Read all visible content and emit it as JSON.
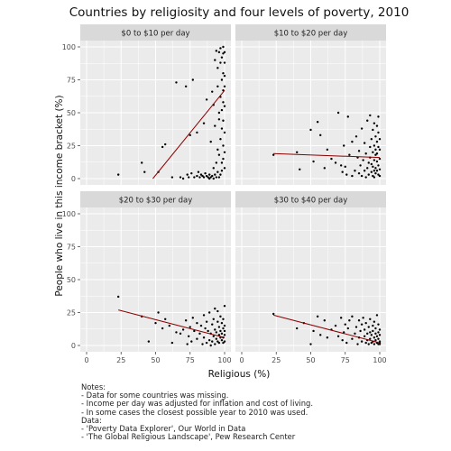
{
  "chart_data": {
    "type": "scatter",
    "title": "Countries by religiosity and four levels of poverty, 2010",
    "xlabel": "Religious (%)",
    "ylabel": "People who live in this income bracket (%)",
    "xlim": [
      0,
      100
    ],
    "ylim": [
      0,
      100
    ],
    "x_ticks": [
      "0",
      "25",
      "50",
      "75",
      "100"
    ],
    "y_ticks": [
      "0",
      "25",
      "50",
      "75",
      "100"
    ],
    "grid": true,
    "colors": {
      "panel_bg": "#ebebeb",
      "strip_bg": "#d9d9d9",
      "grid": "#ffffff",
      "point": "#000000",
      "trend": "#8b0000"
    },
    "panels": [
      {
        "label": "$0 to $10 per day",
        "trend": [
          [
            48,
            0
          ],
          [
            100,
            67
          ]
        ],
        "points": [
          [
            23,
            3
          ],
          [
            40,
            12
          ],
          [
            42,
            5
          ],
          [
            52,
            5
          ],
          [
            55,
            24
          ],
          [
            57,
            26
          ],
          [
            62,
            1
          ],
          [
            65,
            73
          ],
          [
            68,
            1
          ],
          [
            70,
            0
          ],
          [
            72,
            70
          ],
          [
            73,
            3
          ],
          [
            74,
            1
          ],
          [
            75,
            33
          ],
          [
            76,
            4
          ],
          [
            77,
            75
          ],
          [
            78,
            1
          ],
          [
            80,
            2
          ],
          [
            80,
            35
          ],
          [
            81,
            5
          ],
          [
            82,
            1
          ],
          [
            83,
            3
          ],
          [
            84,
            2
          ],
          [
            85,
            42
          ],
          [
            85,
            1
          ],
          [
            86,
            4
          ],
          [
            87,
            60
          ],
          [
            87,
            2
          ],
          [
            88,
            1
          ],
          [
            89,
            0
          ],
          [
            89,
            3
          ],
          [
            90,
            28
          ],
          [
            90,
            1
          ],
          [
            91,
            66
          ],
          [
            91,
            2
          ],
          [
            92,
            8
          ],
          [
            92,
            56
          ],
          [
            92,
            0
          ],
          [
            93,
            90
          ],
          [
            93,
            3
          ],
          [
            93,
            40
          ],
          [
            94,
            1
          ],
          [
            94,
            12
          ],
          [
            94,
            97
          ],
          [
            95,
            70
          ],
          [
            95,
            22
          ],
          [
            95,
            5
          ],
          [
            95,
            84
          ],
          [
            96,
            50
          ],
          [
            96,
            96
          ],
          [
            96,
            1
          ],
          [
            96,
            45
          ],
          [
            96,
            18
          ],
          [
            97,
            88
          ],
          [
            97,
            62
          ],
          [
            97,
            3
          ],
          [
            97,
            30
          ],
          [
            97,
            99
          ],
          [
            98,
            75
          ],
          [
            98,
            52
          ],
          [
            98,
            12
          ],
          [
            98,
            92
          ],
          [
            98,
            38
          ],
          [
            98,
            6
          ],
          [
            99,
            80
          ],
          [
            99,
            58
          ],
          [
            99,
            95
          ],
          [
            99,
            100
          ],
          [
            99,
            25
          ],
          [
            99,
            67
          ],
          [
            99,
            15
          ],
          [
            99,
            44
          ],
          [
            100,
            70
          ],
          [
            100,
            88
          ],
          [
            100,
            35
          ],
          [
            100,
            96
          ],
          [
            100,
            8
          ],
          [
            100,
            55
          ],
          [
            100,
            20
          ],
          [
            100,
            78
          ]
        ]
      },
      {
        "label": "$10 to $20 per day",
        "trend": [
          [
            23,
            19
          ],
          [
            100,
            16
          ]
        ],
        "points": [
          [
            23,
            18
          ],
          [
            40,
            20
          ],
          [
            42,
            7
          ],
          [
            50,
            37
          ],
          [
            52,
            13
          ],
          [
            55,
            43
          ],
          [
            57,
            33
          ],
          [
            60,
            8
          ],
          [
            62,
            22
          ],
          [
            65,
            15
          ],
          [
            68,
            12
          ],
          [
            70,
            50
          ],
          [
            72,
            10
          ],
          [
            73,
            5
          ],
          [
            74,
            25
          ],
          [
            75,
            9
          ],
          [
            76,
            3
          ],
          [
            77,
            47
          ],
          [
            78,
            18
          ],
          [
            80,
            2
          ],
          [
            80,
            28
          ],
          [
            82,
            6
          ],
          [
            83,
            32
          ],
          [
            84,
            16
          ],
          [
            85,
            4
          ],
          [
            85,
            21
          ],
          [
            86,
            10
          ],
          [
            87,
            38
          ],
          [
            87,
            2
          ],
          [
            88,
            14
          ],
          [
            89,
            6
          ],
          [
            89,
            27
          ],
          [
            90,
            19
          ],
          [
            90,
            1
          ],
          [
            91,
            44
          ],
          [
            91,
            8
          ],
          [
            92,
            12
          ],
          [
            92,
            3
          ],
          [
            93,
            24
          ],
          [
            93,
            16
          ],
          [
            93,
            48
          ],
          [
            94,
            5
          ],
          [
            94,
            30
          ],
          [
            94,
            11
          ],
          [
            95,
            20
          ],
          [
            95,
            2
          ],
          [
            95,
            37
          ],
          [
            95,
            9
          ],
          [
            96,
            14
          ],
          [
            96,
            25
          ],
          [
            96,
            42
          ],
          [
            96,
            6
          ],
          [
            96,
            1
          ],
          [
            97,
            18
          ],
          [
            97,
            32
          ],
          [
            97,
            8
          ],
          [
            97,
            22
          ],
          [
            97,
            4
          ],
          [
            98,
            28
          ],
          [
            98,
            13
          ],
          [
            98,
            40
          ],
          [
            98,
            6
          ],
          [
            98,
            19
          ],
          [
            99,
            35
          ],
          [
            99,
            10
          ],
          [
            99,
            24
          ],
          [
            99,
            3
          ],
          [
            99,
            47
          ],
          [
            100,
            15
          ],
          [
            100,
            30
          ],
          [
            100,
            7
          ],
          [
            100,
            22
          ],
          [
            100,
            2
          ]
        ]
      },
      {
        "label": "$20 to $30 per day",
        "trend": [
          [
            23,
            27
          ],
          [
            100,
            6
          ]
        ],
        "points": [
          [
            23,
            37
          ],
          [
            40,
            22
          ],
          [
            45,
            3
          ],
          [
            50,
            17
          ],
          [
            52,
            25
          ],
          [
            55,
            13
          ],
          [
            57,
            20
          ],
          [
            60,
            15
          ],
          [
            62,
            2
          ],
          [
            65,
            10
          ],
          [
            68,
            9
          ],
          [
            70,
            12
          ],
          [
            72,
            19
          ],
          [
            73,
            1
          ],
          [
            74,
            7
          ],
          [
            75,
            14
          ],
          [
            76,
            3
          ],
          [
            77,
            21
          ],
          [
            78,
            11
          ],
          [
            80,
            5
          ],
          [
            80,
            17
          ],
          [
            82,
            9
          ],
          [
            83,
            15
          ],
          [
            84,
            1
          ],
          [
            85,
            23
          ],
          [
            85,
            6
          ],
          [
            86,
            13
          ],
          [
            87,
            2
          ],
          [
            87,
            18
          ],
          [
            88,
            11
          ],
          [
            89,
            4
          ],
          [
            89,
            25
          ],
          [
            90,
            9
          ],
          [
            90,
            0
          ],
          [
            91,
            16
          ],
          [
            91,
            3
          ],
          [
            92,
            20
          ],
          [
            92,
            7
          ],
          [
            93,
            12
          ],
          [
            93,
            1
          ],
          [
            93,
            28
          ],
          [
            94,
            5
          ],
          [
            94,
            10
          ],
          [
            95,
            18
          ],
          [
            95,
            3
          ],
          [
            95,
            26
          ],
          [
            96,
            8
          ],
          [
            96,
            14
          ],
          [
            96,
            2
          ],
          [
            97,
            22
          ],
          [
            97,
            6
          ],
          [
            97,
            11
          ],
          [
            98,
            4
          ],
          [
            98,
            17
          ],
          [
            98,
            9
          ],
          [
            99,
            2
          ],
          [
            99,
            13
          ],
          [
            99,
            20
          ],
          [
            99,
            6
          ],
          [
            100,
            8
          ],
          [
            100,
            15
          ],
          [
            100,
            3
          ],
          [
            100,
            30
          ],
          [
            100,
            11
          ]
        ]
      },
      {
        "label": "$30 to $40 per day",
        "trend": [
          [
            23,
            23
          ],
          [
            100,
            2
          ]
        ],
        "points": [
          [
            23,
            24
          ],
          [
            40,
            13
          ],
          [
            45,
            17
          ],
          [
            50,
            1
          ],
          [
            52,
            11
          ],
          [
            55,
            22
          ],
          [
            57,
            8
          ],
          [
            60,
            19
          ],
          [
            62,
            6
          ],
          [
            65,
            12
          ],
          [
            68,
            15
          ],
          [
            70,
            7
          ],
          [
            72,
            21
          ],
          [
            73,
            4
          ],
          [
            74,
            10
          ],
          [
            75,
            16
          ],
          [
            76,
            2
          ],
          [
            77,
            13
          ],
          [
            78,
            19
          ],
          [
            80,
            5
          ],
          [
            80,
            22
          ],
          [
            82,
            9
          ],
          [
            83,
            14
          ],
          [
            84,
            1
          ],
          [
            85,
            19
          ],
          [
            85,
            6
          ],
          [
            86,
            11
          ],
          [
            87,
            3
          ],
          [
            87,
            16
          ],
          [
            88,
            21
          ],
          [
            89,
            7
          ],
          [
            89,
            12
          ],
          [
            90,
            2
          ],
          [
            90,
            17
          ],
          [
            91,
            9
          ],
          [
            91,
            4
          ],
          [
            92,
            14
          ],
          [
            92,
            1
          ],
          [
            93,
            10
          ],
          [
            93,
            20
          ],
          [
            93,
            5
          ],
          [
            94,
            2
          ],
          [
            94,
            8
          ],
          [
            95,
            15
          ],
          [
            95,
            3
          ],
          [
            95,
            11
          ],
          [
            96,
            1
          ],
          [
            96,
            6
          ],
          [
            96,
            18
          ],
          [
            97,
            4
          ],
          [
            97,
            9
          ],
          [
            97,
            13
          ],
          [
            98,
            2
          ],
          [
            98,
            7
          ],
          [
            98,
            23
          ],
          [
            99,
            1
          ],
          [
            99,
            5
          ],
          [
            99,
            10
          ],
          [
            99,
            16
          ],
          [
            100,
            3
          ],
          [
            100,
            8
          ],
          [
            100,
            2
          ],
          [
            100,
            12
          ],
          [
            100,
            1
          ]
        ]
      }
    ]
  },
  "notes": [
    "Notes:",
    "- Data for some countries was missing.",
    "- Income per day was adjusted for inflation and cost of living.",
    "- In some cases the closest possible year to 2010 was used.",
    "Data:",
    "- 'Poverty Data Explorer', Our World in Data",
    "- 'The Global Religious Landscape', Pew Research Center"
  ]
}
